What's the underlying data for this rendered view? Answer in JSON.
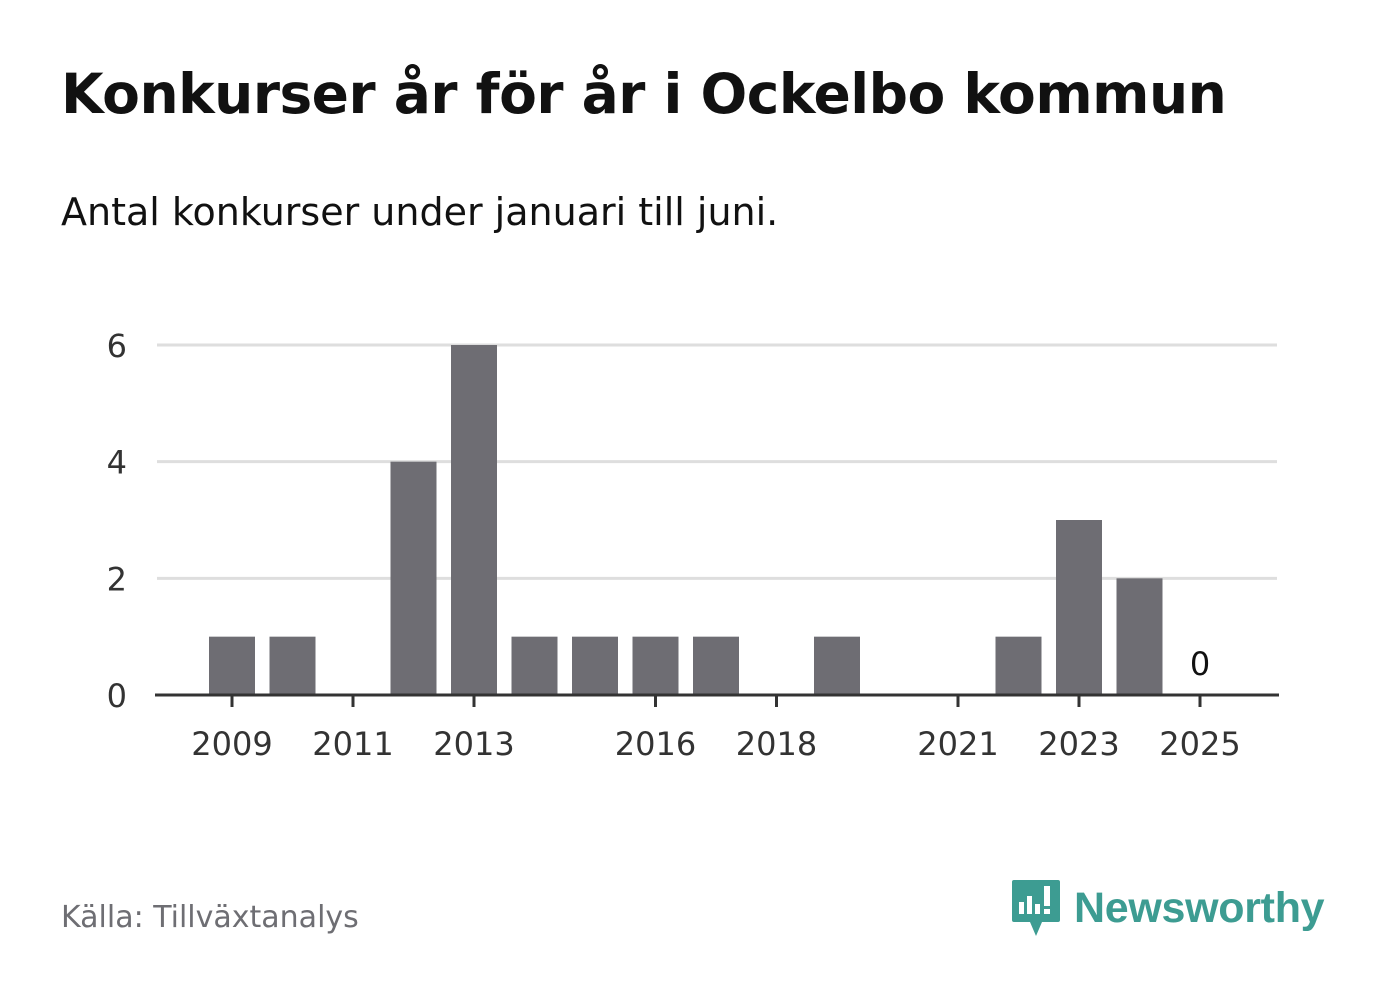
{
  "title": "Konkurser år för år i Ockelbo kommun",
  "subtitle": "Antal konkurser under januari till juni.",
  "source": "Källa: Tillväxtanalys",
  "brand": {
    "name": "Newsworthy",
    "icon": "newsworthy-logo-icon",
    "color": "#3d9c92"
  },
  "colors": {
    "bar": "#6e6d73",
    "grid": "#dedede",
    "axis": "#333333",
    "tick_text": "#333333"
  },
  "chart_data": {
    "type": "bar",
    "title": "Konkurser år för år i Ockelbo kommun",
    "subtitle": "Antal konkurser under januari till juni.",
    "xlabel": "",
    "ylabel": "",
    "categories": [
      2009,
      2010,
      2011,
      2012,
      2013,
      2014,
      2015,
      2016,
      2017,
      2018,
      2019,
      2020,
      2021,
      2022,
      2023,
      2024,
      2025
    ],
    "values": [
      1,
      1,
      0,
      4,
      6,
      1,
      1,
      1,
      1,
      0,
      1,
      0,
      0,
      1,
      3,
      2,
      0
    ],
    "x_tick_labels": [
      "2009",
      "2011",
      "2013",
      "2016",
      "2018",
      "2021",
      "2023",
      "2025"
    ],
    "y_ticks": [
      0,
      2,
      4,
      6
    ],
    "ylim": [
      0,
      6
    ],
    "grid": true,
    "annotations": [
      {
        "category": 2025,
        "text": "0"
      }
    ]
  }
}
